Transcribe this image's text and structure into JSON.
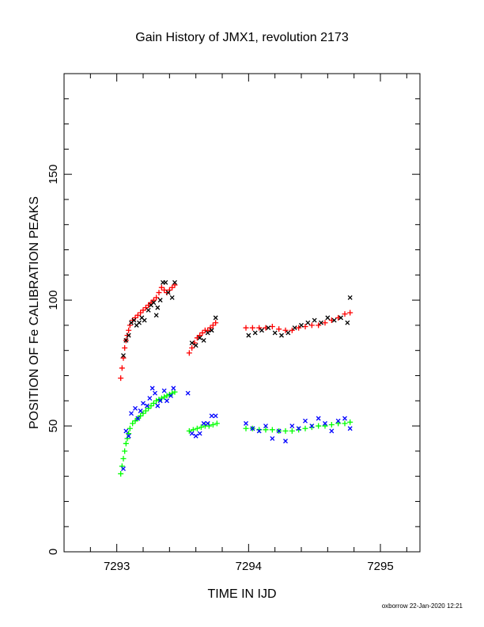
{
  "chart_data": {
    "type": "scatter",
    "title": "Gain History of JMX1, revolution 2173",
    "xlabel": "TIME IN IJD",
    "ylabel": "POSITION OF Fe CALIBRATION PEAKS",
    "xlim": [
      7292.6,
      7295.3
    ],
    "ylim": [
      0,
      190
    ],
    "xticks": [
      7293,
      7294,
      7295
    ],
    "xtick_labels": [
      "7293",
      "7294",
      "7295"
    ],
    "yticks": [
      0,
      50,
      100,
      150
    ],
    "ytick_labels": [
      "0",
      "50",
      "100",
      "150"
    ],
    "grid": false,
    "footer": "oxborrow 22-Jan-2020 12:21",
    "colors": {
      "fit_high": "#ff0000",
      "fit_low": "#00ff00",
      "raw_high": "#000000",
      "raw_low": "#0000ff"
    },
    "series": [
      {
        "marker": "plus",
        "color": "#ff0000",
        "x": [
          7293.03,
          7293.04,
          7293.05,
          7293.06,
          7293.07,
          7293.08,
          7293.09,
          7293.1,
          7293.12,
          7293.14,
          7293.16,
          7293.18,
          7293.2,
          7293.22,
          7293.24,
          7293.26,
          7293.28,
          7293.3,
          7293.32,
          7293.34,
          7293.36,
          7293.38,
          7293.4,
          7293.42,
          7293.44,
          7293.55,
          7293.57,
          7293.59,
          7293.61,
          7293.63,
          7293.65,
          7293.67,
          7293.69,
          7293.71,
          7293.73,
          7293.75,
          7293.98,
          7294.03,
          7294.08,
          7294.13,
          7294.18,
          7294.23,
          7294.28,
          7294.33,
          7294.38,
          7294.43,
          7294.48,
          7294.53,
          7294.58,
          7294.63,
          7294.68,
          7294.73,
          7294.77
        ],
        "y": [
          69,
          73,
          77,
          81,
          84,
          86,
          88,
          90,
          92,
          93,
          94,
          95,
          96,
          97,
          98,
          99,
          100,
          101,
          103,
          105,
          104,
          103,
          104,
          105,
          106,
          79,
          81,
          83,
          85,
          86,
          87,
          88,
          88,
          89,
          90,
          91,
          89,
          89,
          89,
          89,
          89.5,
          88.5,
          88,
          88,
          89,
          89.5,
          90,
          90,
          91,
          92,
          93,
          94.5,
          95
        ]
      },
      {
        "marker": "x",
        "color": "#000000",
        "x": [
          7293.05,
          7293.07,
          7293.09,
          7293.11,
          7293.13,
          7293.15,
          7293.17,
          7293.19,
          7293.21,
          7293.24,
          7293.26,
          7293.28,
          7293.3,
          7293.31,
          7293.33,
          7293.35,
          7293.37,
          7293.39,
          7293.42,
          7293.44,
          7293.57,
          7293.6,
          7293.63,
          7293.66,
          7293.69,
          7293.72,
          7293.75,
          7294.0,
          7294.05,
          7294.1,
          7294.15,
          7294.2,
          7294.25,
          7294.3,
          7294.35,
          7294.4,
          7294.45,
          7294.5,
          7294.55,
          7294.6,
          7294.65,
          7294.7,
          7294.75,
          7294.77
        ],
        "y": [
          78,
          84,
          86,
          91,
          92,
          90,
          91,
          93,
          92,
          96,
          98,
          99,
          94,
          97,
          100,
          107,
          107,
          103,
          101,
          107,
          83,
          82,
          85,
          84,
          87,
          88,
          93,
          86,
          87,
          88,
          89,
          87,
          86,
          87,
          89,
          90,
          91,
          92,
          91,
          93,
          92,
          93,
          91,
          101
        ]
      },
      {
        "marker": "plus",
        "color": "#00ff00",
        "x": [
          7293.03,
          7293.04,
          7293.05,
          7293.06,
          7293.07,
          7293.08,
          7293.09,
          7293.1,
          7293.12,
          7293.14,
          7293.16,
          7293.18,
          7293.2,
          7293.22,
          7293.24,
          7293.26,
          7293.28,
          7293.3,
          7293.32,
          7293.34,
          7293.36,
          7293.38,
          7293.4,
          7293.42,
          7293.44,
          7293.55,
          7293.58,
          7293.61,
          7293.64,
          7293.67,
          7293.7,
          7293.73,
          7293.76,
          7293.98,
          7294.03,
          7294.08,
          7294.13,
          7294.18,
          7294.23,
          7294.28,
          7294.33,
          7294.38,
          7294.43,
          7294.48,
          7294.53,
          7294.58,
          7294.63,
          7294.68,
          7294.73,
          7294.77
        ],
        "y": [
          31,
          34,
          37,
          40,
          43,
          45,
          47,
          49,
          51,
          52,
          53,
          54,
          55,
          56,
          57,
          58,
          59,
          60,
          60.5,
          61,
          61.5,
          62,
          62.5,
          63,
          63.5,
          48,
          48.5,
          49,
          49.5,
          50,
          50,
          50.5,
          51,
          49,
          49,
          48.5,
          48.5,
          48.5,
          48,
          48,
          48,
          48.5,
          49,
          49.5,
          50,
          50,
          50.5,
          51,
          51,
          51.5
        ]
      },
      {
        "marker": "x",
        "color": "#0000ff",
        "x": [
          7293.05,
          7293.07,
          7293.09,
          7293.11,
          7293.14,
          7293.16,
          7293.18,
          7293.2,
          7293.23,
          7293.25,
          7293.27,
          7293.29,
          7293.31,
          7293.33,
          7293.36,
          7293.38,
          7293.41,
          7293.43,
          7293.54,
          7293.57,
          7293.6,
          7293.63,
          7293.66,
          7293.69,
          7293.72,
          7293.75,
          7293.98,
          7294.03,
          7294.08,
          7294.13,
          7294.18,
          7294.23,
          7294.28,
          7294.33,
          7294.38,
          7294.43,
          7294.48,
          7294.53,
          7294.58,
          7294.63,
          7294.68,
          7294.73,
          7294.77
        ],
        "y": [
          33,
          48,
          46,
          55,
          57,
          53,
          56,
          59,
          58,
          61,
          65,
          63,
          58,
          60,
          64,
          60,
          62,
          65,
          63,
          47,
          46,
          47,
          51,
          51,
          54,
          54,
          51,
          49,
          48,
          50,
          45,
          48,
          44,
          50,
          49,
          52,
          50,
          53,
          51,
          48,
          52,
          53,
          49
        ]
      }
    ]
  }
}
